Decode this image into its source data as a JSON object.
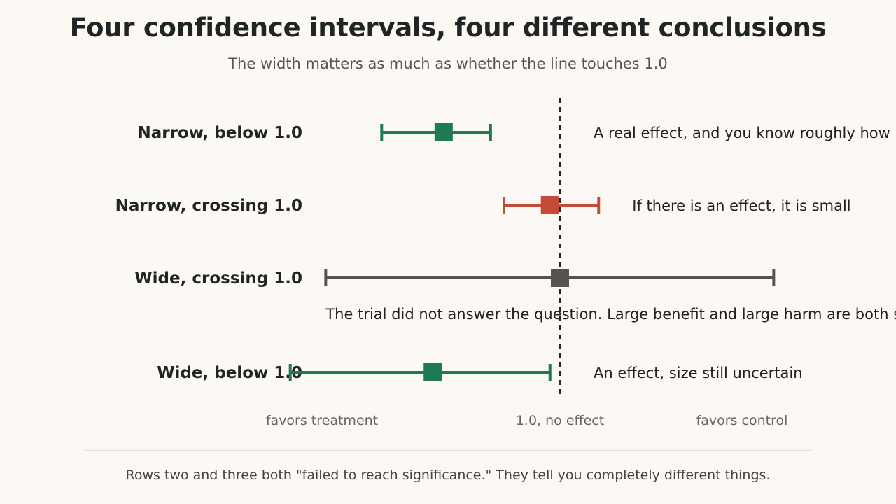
{
  "title": "Four confidence intervals, four different conclusions",
  "subtitle": "The width matters as much as whether the line touches 1.0",
  "footnote": "Rows two and three both \"failed to reach significance.\" They tell you completely different things.",
  "colors": {
    "background": "#fcf9f4",
    "green": "#1f7a50",
    "red": "#c44b3a",
    "gray": "#58524e",
    "reference_line": "#222222"
  },
  "chart_data": {
    "type": "forest",
    "x_scale": "log",
    "x_label": "",
    "xlim": [
      0.24,
      3.3
    ],
    "reference_line": {
      "x": 1.0,
      "style": "dashed"
    },
    "axis_labels": {
      "left": "favors treatment",
      "center": "1.0, no effect",
      "right": "favors control"
    },
    "rows": [
      {
        "label": "Narrow, below 1.0",
        "estimate": 0.55,
        "lower": 0.4,
        "upper": 0.7,
        "color": "#1f7a50",
        "annotation": "A real effect, and you know roughly how big",
        "annotation_position": "right"
      },
      {
        "label": "Narrow, crossing 1.0",
        "estimate": 0.95,
        "lower": 0.75,
        "upper": 1.22,
        "color": "#c44b3a",
        "annotation": "If there is an effect, it is small",
        "annotation_position": "right"
      },
      {
        "label": "Wide, crossing 1.0",
        "estimate": 1.0,
        "lower": 0.3,
        "upper": 3.0,
        "color": "#58524e",
        "annotation": "The trial did not answer the question. Large benefit and large harm are both still possible.",
        "annotation_position": "below"
      },
      {
        "label": "Wide, below 1.0",
        "estimate": 0.52,
        "lower": 0.25,
        "upper": 0.95,
        "color": "#1f7a50",
        "annotation": "An effect, size still uncertain",
        "annotation_position": "right"
      }
    ]
  }
}
